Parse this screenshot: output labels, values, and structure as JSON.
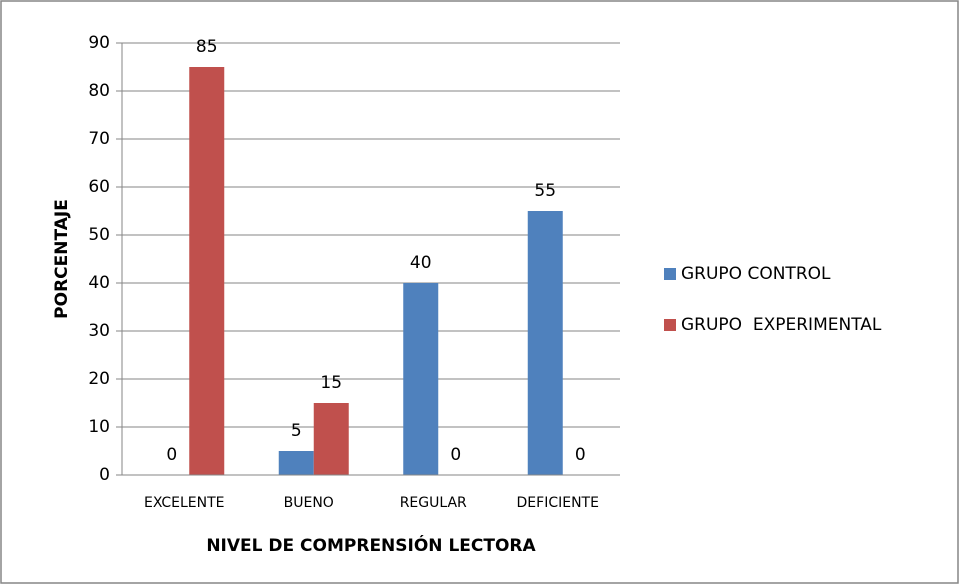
{
  "chart_data": {
    "type": "bar",
    "x_label": "NIVEL DE COMPRENSIÓN LECTORA",
    "y_label": "PORCENTAJE",
    "categories": [
      "EXCELENTE",
      "BUENO",
      "REGULAR",
      "DEFICIENTE"
    ],
    "series": [
      {
        "name": "GRUPO CONTROL",
        "color": "#4f81bd",
        "values": [
          0,
          5,
          40,
          55
        ]
      },
      {
        "name": "GRUPO  EXPERIMENTAL",
        "color": "#c0504d",
        "values": [
          85,
          15,
          0,
          0
        ]
      }
    ],
    "ylim": [
      0,
      90
    ],
    "yticks": [
      0,
      10,
      20,
      30,
      40,
      50,
      60,
      70,
      80,
      90
    ],
    "grid": true,
    "legend": "right"
  }
}
